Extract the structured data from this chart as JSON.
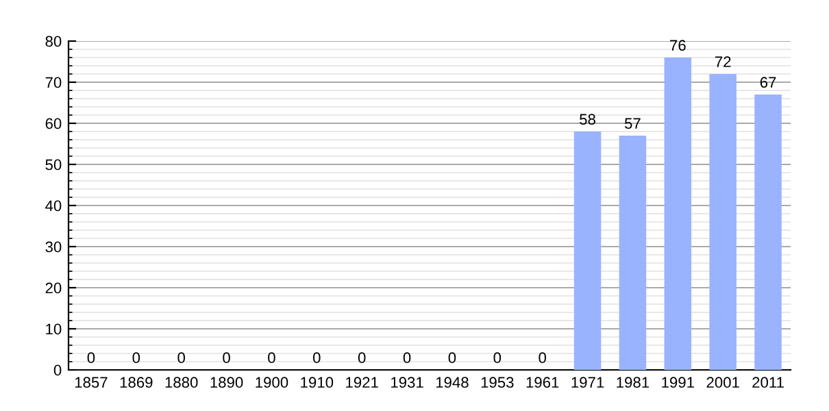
{
  "chart_data": {
    "type": "bar",
    "categories": [
      "1857",
      "1869",
      "1880",
      "1890",
      "1900",
      "1910",
      "1921",
      "1931",
      "1948",
      "1953",
      "1961",
      "1971",
      "1981",
      "1991",
      "2001",
      "2011"
    ],
    "values": [
      0,
      0,
      0,
      0,
      0,
      0,
      0,
      0,
      0,
      0,
      0,
      58,
      57,
      76,
      72,
      67
    ],
    "color": "#99b3ff",
    "data_labels": true,
    "ylim": [
      0,
      80
    ],
    "yticks": [
      0,
      10,
      20,
      30,
      40,
      50,
      60,
      70,
      80
    ],
    "grid": "y"
  }
}
